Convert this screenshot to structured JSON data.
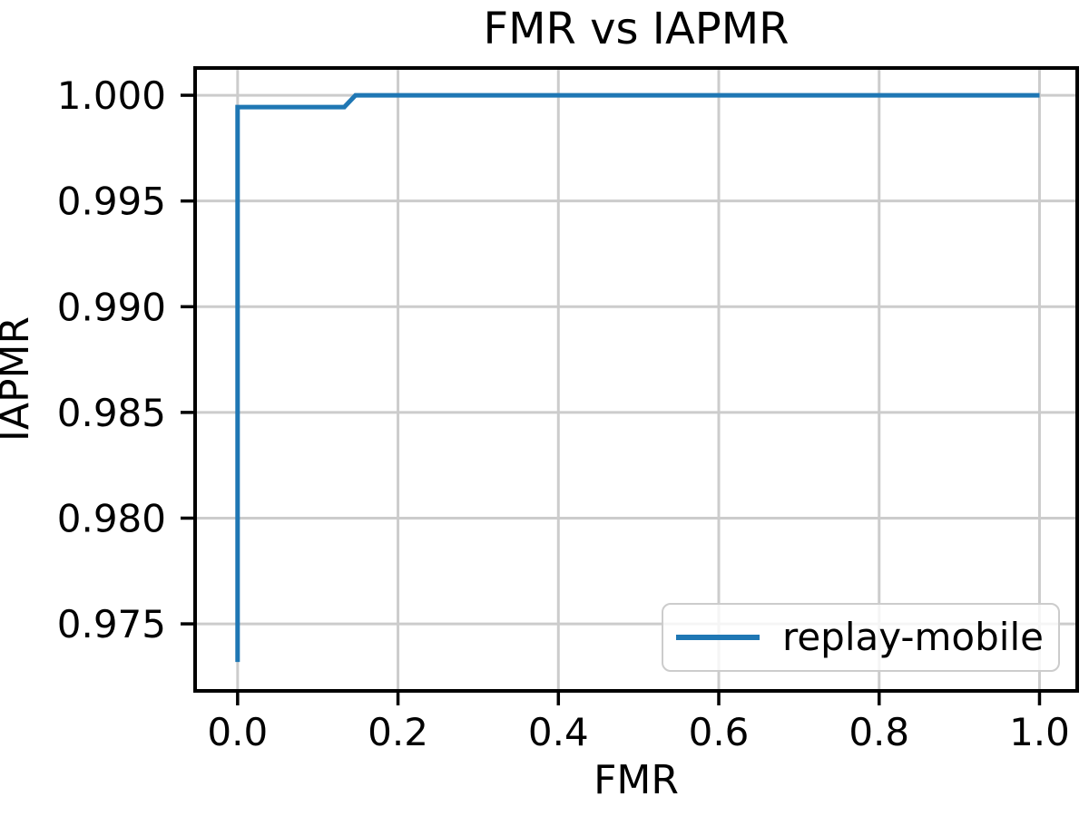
{
  "page": {
    "background": "#ffffff"
  },
  "chart_data": {
    "type": "line",
    "title": "FMR vs IAPMR",
    "xlabel": "FMR",
    "ylabel": "IAPMR",
    "xlim": [
      -0.053,
      1.047
    ],
    "ylim": [
      0.97183,
      1.00129
    ],
    "grid": true,
    "xticks": {
      "values": [
        0.0,
        0.2,
        0.4,
        0.6,
        0.8,
        1.0
      ],
      "labels": [
        "0.0",
        "0.2",
        "0.4",
        "0.6",
        "0.8",
        "1.0"
      ]
    },
    "yticks": {
      "values": [
        0.975,
        0.98,
        0.985,
        0.99,
        0.995,
        1.0
      ],
      "labels": [
        "0.975",
        "0.980",
        "0.985",
        "0.990",
        "0.995",
        "1.000"
      ]
    },
    "series": [
      {
        "name": "replay-mobile",
        "color": "#1f77b4",
        "linewidth": 5,
        "points": [
          [
            0.0,
            0.9732
          ],
          [
            0.0,
            0.99944
          ],
          [
            0.133,
            0.99944
          ],
          [
            0.147,
            1.0
          ],
          [
            1.0,
            1.0
          ]
        ]
      }
    ],
    "legend": {
      "position": "lower right",
      "entries": [
        {
          "label": "replay-mobile",
          "color": "#1f77b4"
        }
      ]
    },
    "colors": {
      "series": "#1f77b4",
      "grid": "#cccccc",
      "spine": "#000000",
      "tick": "#000000",
      "text": "#000000",
      "legend_border": "#cccccc",
      "legend_bg_fill": "#ffffff",
      "legend_bg_opacity": "0.8"
    }
  }
}
